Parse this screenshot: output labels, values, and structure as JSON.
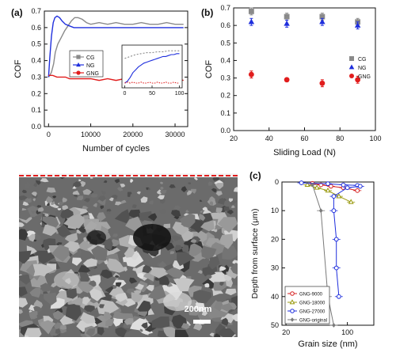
{
  "chart_data": [
    {
      "panel_label": "(a)",
      "type": "line",
      "xlabel": "Number of cycles",
      "ylabel": "COF",
      "xlim": [
        -1000,
        33000
      ],
      "ylim": [
        0.0,
        0.7
      ],
      "xticks": [
        0,
        10000,
        20000,
        30000
      ],
      "yticks": [
        0.0,
        0.1,
        0.2,
        0.3,
        0.4,
        0.5,
        0.6,
        0.7
      ],
      "legend_position": "right-center",
      "series": [
        {
          "name": "CG",
          "color": "#8a8a8a",
          "marker": "square",
          "x": [
            0,
            300,
            700,
            1200,
            1600,
            2200,
            3000,
            3800,
            4600,
            5400,
            6200,
            7000,
            8000,
            9000,
            10000,
            12000,
            14000,
            16000,
            18000,
            20000,
            22000,
            24000,
            26000,
            28000,
            30000,
            32000
          ],
          "y": [
            0.3,
            0.31,
            0.33,
            0.38,
            0.45,
            0.5,
            0.54,
            0.58,
            0.61,
            0.64,
            0.66,
            0.66,
            0.65,
            0.63,
            0.62,
            0.63,
            0.62,
            0.63,
            0.62,
            0.62,
            0.63,
            0.62,
            0.62,
            0.63,
            0.62,
            0.62
          ]
        },
        {
          "name": "NG",
          "color": "#1f2fdd",
          "marker": "triangle",
          "x": [
            0,
            300,
            700,
            1100,
            1500,
            2000,
            2600,
            3200,
            4000,
            5000,
            6000,
            7000,
            8000,
            10000,
            12000,
            14000,
            16000,
            18000,
            20000,
            22000,
            24000,
            26000,
            28000,
            30000,
            32000
          ],
          "y": [
            0.3,
            0.42,
            0.55,
            0.63,
            0.66,
            0.67,
            0.66,
            0.64,
            0.62,
            0.61,
            0.6,
            0.6,
            0.6,
            0.6,
            0.6,
            0.6,
            0.6,
            0.6,
            0.6,
            0.6,
            0.6,
            0.6,
            0.6,
            0.6,
            0.6
          ]
        },
        {
          "name": "GNG",
          "color": "#e11d1d",
          "marker": "circle",
          "x": [
            0,
            500,
            1000,
            2000,
            3000,
            4000,
            5000,
            6000,
            7000,
            8000,
            10000,
            12000,
            14000,
            16000,
            18000,
            20000,
            22000,
            24000,
            26000,
            28000,
            30000,
            32000
          ],
          "y": [
            0.31,
            0.31,
            0.31,
            0.3,
            0.3,
            0.3,
            0.29,
            0.29,
            0.29,
            0.29,
            0.29,
            0.28,
            0.29,
            0.28,
            0.29,
            0.28,
            0.28,
            0.29,
            0.28,
            0.28,
            0.29,
            0.28
          ]
        }
      ],
      "inset": {
        "xlim": [
          -5,
          105
        ],
        "ylim": [
          0.25,
          0.7
        ],
        "xticks": [
          0,
          50,
          100
        ],
        "series": [
          {
            "name": "CG",
            "color": "#8a8a8a",
            "x": [
              0,
              10,
              20,
              30,
              40,
              50,
              60,
              70,
              80,
              90,
              100
            ],
            "y": [
              0.56,
              0.58,
              0.6,
              0.61,
              0.62,
              0.62,
              0.63,
              0.63,
              0.64,
              0.64,
              0.64
            ]
          },
          {
            "name": "NG",
            "color": "#1f2fdd",
            "x": [
              0,
              5,
              10,
              15,
              20,
              25,
              30,
              35,
              40,
              45,
              50,
              55,
              60,
              65,
              70,
              75,
              80,
              85,
              90,
              95,
              100
            ],
            "y": [
              0.3,
              0.32,
              0.36,
              0.41,
              0.44,
              0.47,
              0.49,
              0.51,
              0.52,
              0.53,
              0.54,
              0.55,
              0.56,
              0.57,
              0.58,
              0.58,
              0.59,
              0.6,
              0.6,
              0.61,
              0.61
            ]
          },
          {
            "name": "GNG",
            "color": "#e11d1d",
            "x": [
              0,
              5,
              10,
              15,
              20,
              25,
              30,
              35,
              40,
              45,
              50,
              55,
              60,
              65,
              70,
              75,
              80,
              85,
              90,
              95,
              100
            ],
            "y": [
              0.3,
              0.31,
              0.3,
              0.31,
              0.3,
              0.3,
              0.31,
              0.3,
              0.3,
              0.31,
              0.3,
              0.3,
              0.31,
              0.3,
              0.3,
              0.31,
              0.3,
              0.3,
              0.31,
              0.3,
              0.3
            ]
          }
        ]
      }
    },
    {
      "panel_label": "(b)",
      "type": "scatter",
      "xlabel": "Sliding Load (N)",
      "ylabel": "COF",
      "xlim": [
        20,
        100
      ],
      "ylim": [
        0.0,
        0.7
      ],
      "xticks": [
        20,
        40,
        60,
        80,
        100
      ],
      "yticks": [
        0.0,
        0.1,
        0.2,
        0.3,
        0.4,
        0.5,
        0.6,
        0.7
      ],
      "legend_position": "right-center",
      "series": [
        {
          "name": "CG",
          "color": "#8a8a8a",
          "marker": "square",
          "x": [
            30,
            50,
            70,
            90
          ],
          "y": [
            0.68,
            0.65,
            0.65,
            0.62
          ],
          "err": [
            0.02,
            0.02,
            0.02,
            0.02
          ]
        },
        {
          "name": "NG",
          "color": "#1f2fdd",
          "marker": "triangle",
          "x": [
            30,
            50,
            70,
            90
          ],
          "y": [
            0.62,
            0.61,
            0.62,
            0.6
          ],
          "err": [
            0.02,
            0.02,
            0.02,
            0.02
          ]
        },
        {
          "name": "GNG",
          "color": "#e11d1d",
          "marker": "circle",
          "x": [
            30,
            50,
            70,
            90
          ],
          "y": [
            0.32,
            0.29,
            0.27,
            0.29
          ],
          "err": [
            0.02,
            0.01,
            0.02,
            0.02
          ]
        }
      ]
    },
    {
      "panel_label": "(c)",
      "type": "line",
      "xlabel": "Grain size (nm)",
      "ylabel": "Depth from surface (μm)",
      "xscale": "log",
      "xlim": [
        18,
        200
      ],
      "xticks": [
        20,
        100
      ],
      "ylim": [
        0,
        50
      ],
      "yinverted": true,
      "yticks": [
        0,
        10,
        20,
        30,
        40,
        50
      ],
      "legend_position": "bottom-left",
      "series": [
        {
          "name": "GNG-9000",
          "color": "#d62020",
          "marker": "open-circle",
          "x": [
            40,
            50,
            65,
            90,
            130
          ],
          "y": [
            0.5,
            1,
            1.5,
            2,
            3
          ]
        },
        {
          "name": "GNG-18000",
          "color": "#9a9a10",
          "marker": "open-triangle",
          "x": [
            35,
            45,
            60,
            80,
            110
          ],
          "y": [
            1,
            2,
            3,
            5,
            7
          ]
        },
        {
          "name": "GNG-27000",
          "color": "#1f2fdd",
          "marker": "open-circle",
          "x": [
            30,
            60,
            90,
            130,
            140,
            100,
            70,
            70,
            75,
            75,
            80
          ],
          "y": [
            0.3,
            0.6,
            1,
            1.2,
            1.5,
            2,
            5,
            10,
            20,
            30,
            40
          ]
        },
        {
          "name": "GNG-original",
          "color": "#7a7a7a",
          "marker": "diamond",
          "x": [
            40,
            50,
            60,
            70
          ],
          "y": [
            1,
            10,
            40,
            50
          ]
        }
      ]
    }
  ],
  "micrograph": {
    "scale_bar_label": "200nm"
  }
}
